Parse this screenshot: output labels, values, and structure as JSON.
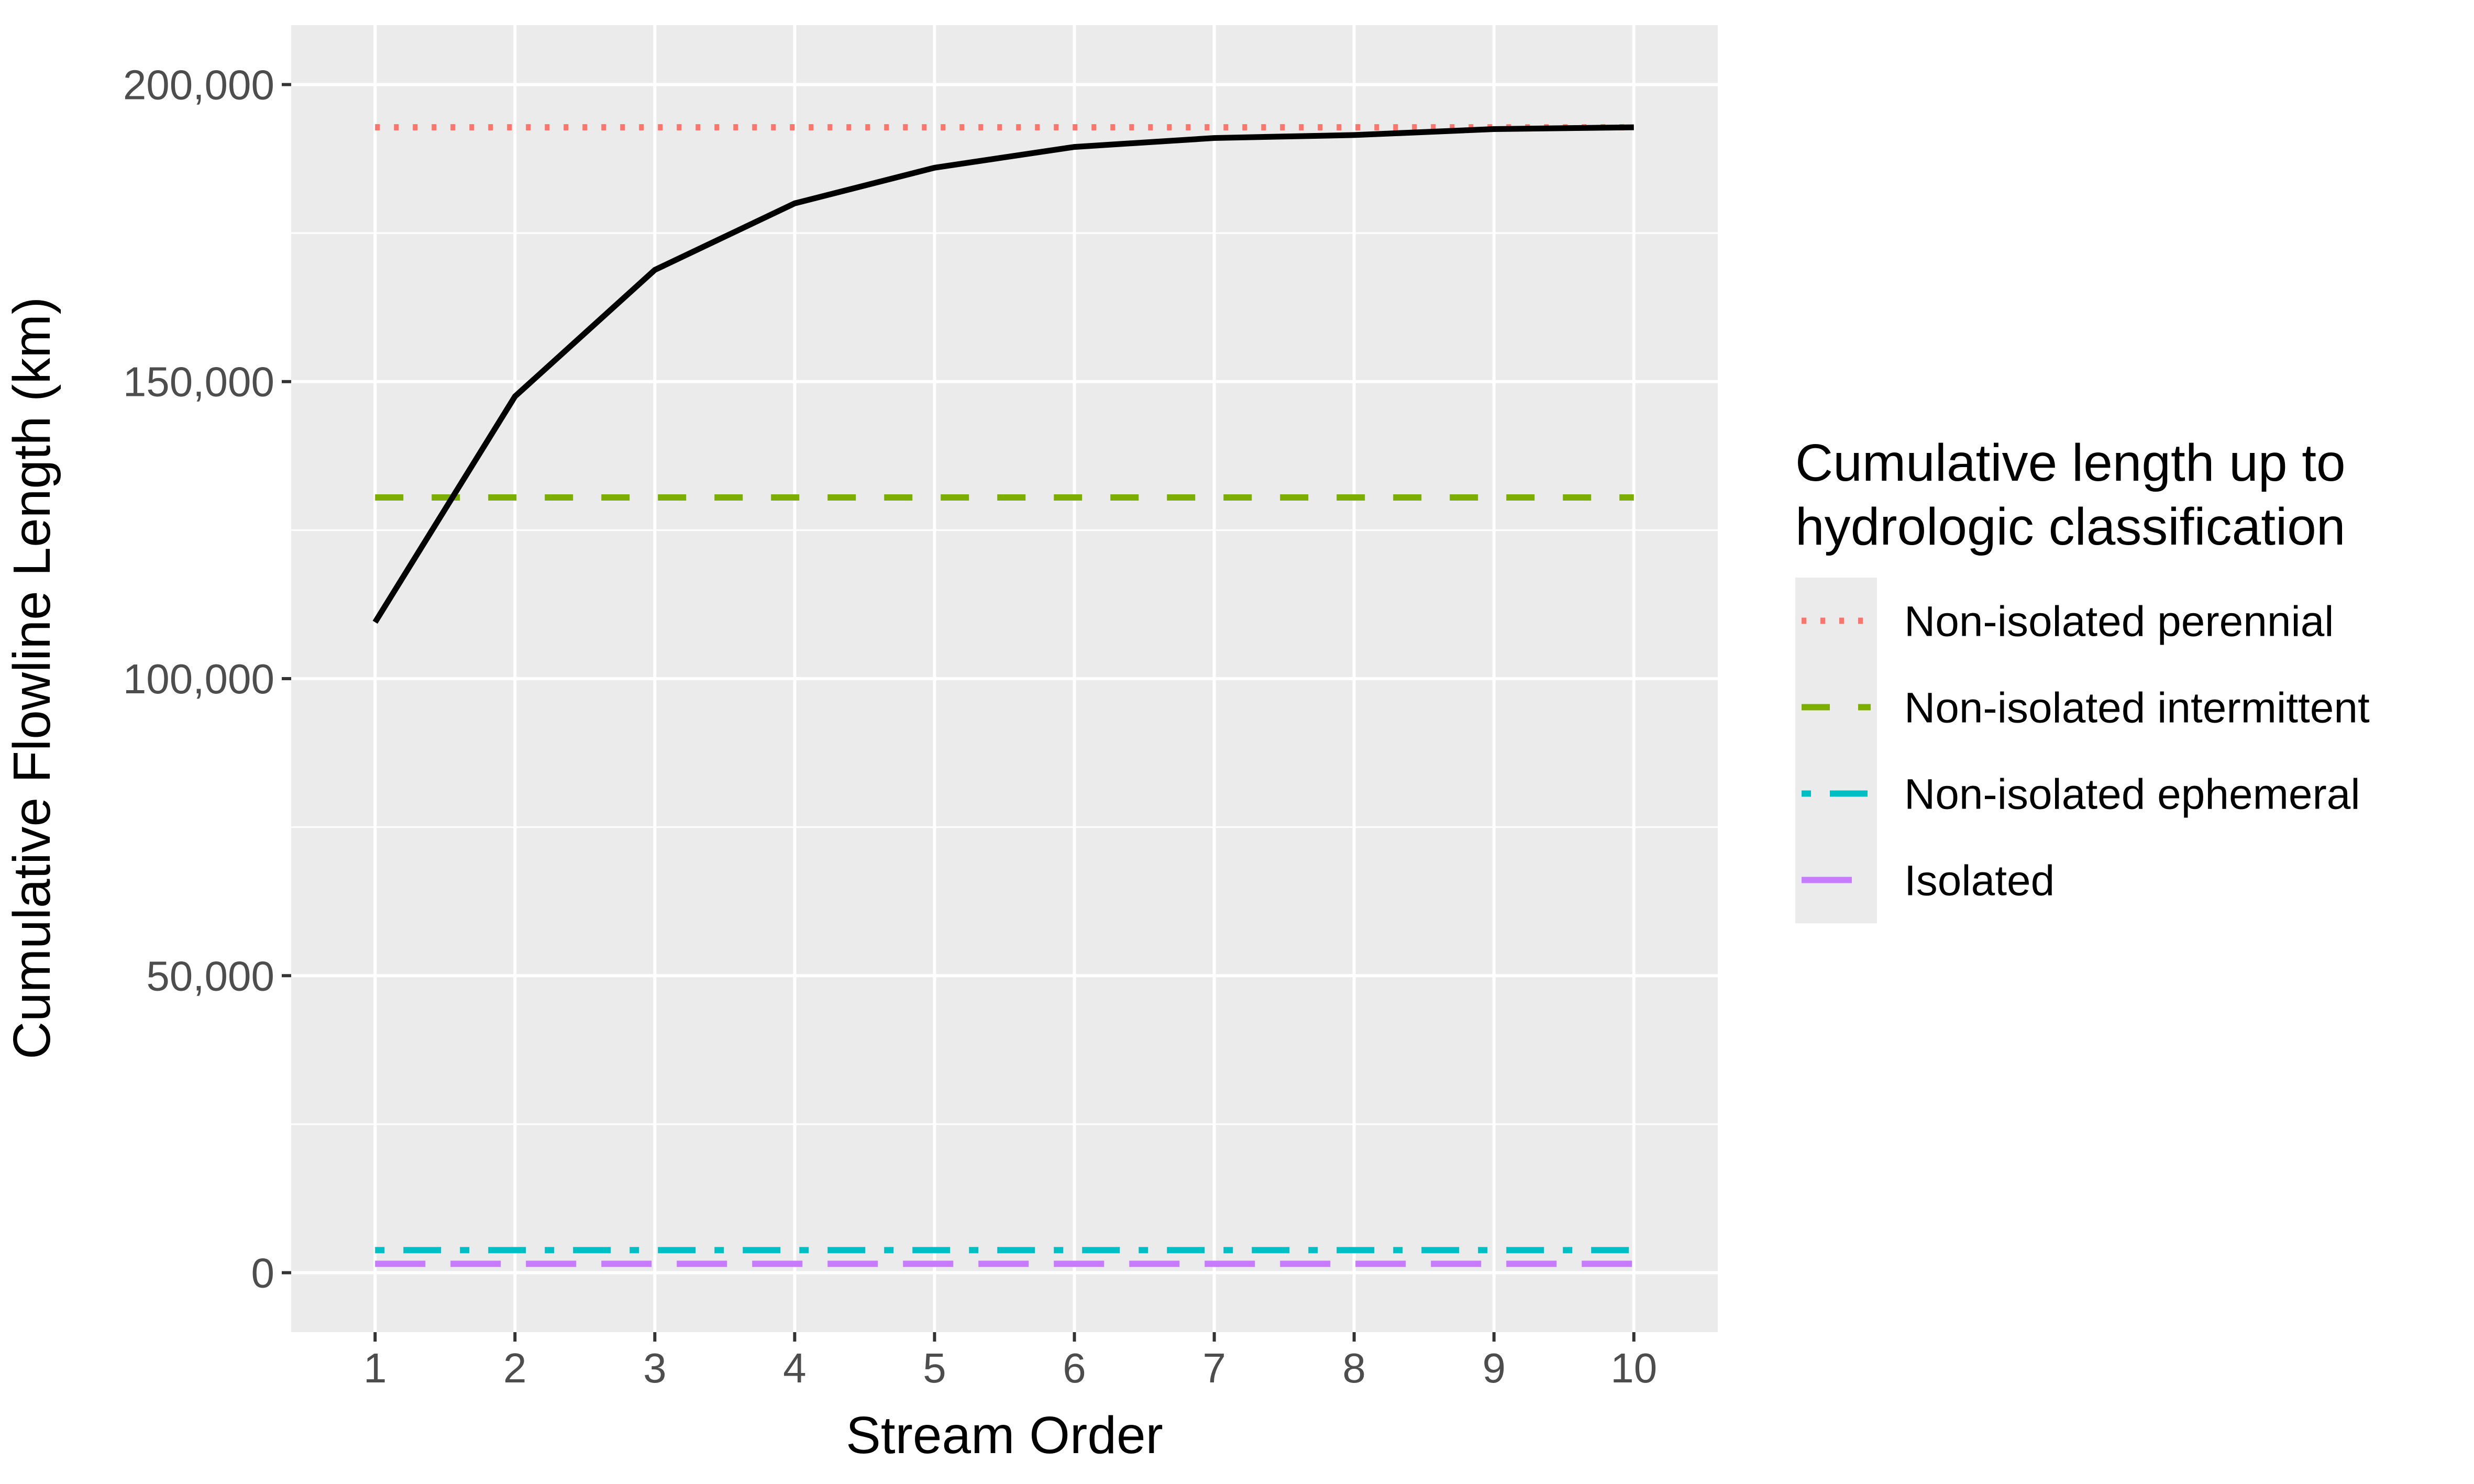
{
  "chart_data": {
    "type": "line",
    "xlabel": "Stream Order",
    "ylabel": "Cumulative Flowline Length (km)",
    "x": [
      1,
      2,
      3,
      4,
      5,
      6,
      7,
      8,
      9,
      10
    ],
    "x_ticks": [
      "1",
      "2",
      "3",
      "4",
      "5",
      "6",
      "7",
      "8",
      "9",
      "10"
    ],
    "xlim": [
      0.4,
      10.6
    ],
    "ylim": [
      -10000,
      210000
    ],
    "y_ticks": [
      0,
      50000,
      100000,
      150000,
      200000
    ],
    "y_tick_labels": [
      "0",
      "50,000",
      "100,000",
      "150,000",
      "200,000"
    ],
    "grid": true,
    "series": [
      {
        "values": [
          109500,
          147500,
          168800,
          180000,
          186000,
          189500,
          191000,
          191500,
          192500,
          192800
        ],
        "color": "#000000"
      }
    ],
    "reference_lines": [
      {
        "name": "Non-isolated perennial",
        "y": 192800,
        "color": "#F8766D",
        "style": "dotted"
      },
      {
        "name": "Non-isolated intermittent",
        "y": 130500,
        "color": "#7CAE00",
        "style": "dashed"
      },
      {
        "name": "Non-isolated ephemeral",
        "y": 3800,
        "color": "#00BFC4",
        "style": "dotdash"
      },
      {
        "name": "Isolated",
        "y": 1500,
        "color": "#C77CFF",
        "style": "longdash"
      }
    ],
    "legend": {
      "title_line1": "Cumulative length up to",
      "title_line2": "hydrologic classification",
      "position": "right"
    }
  }
}
